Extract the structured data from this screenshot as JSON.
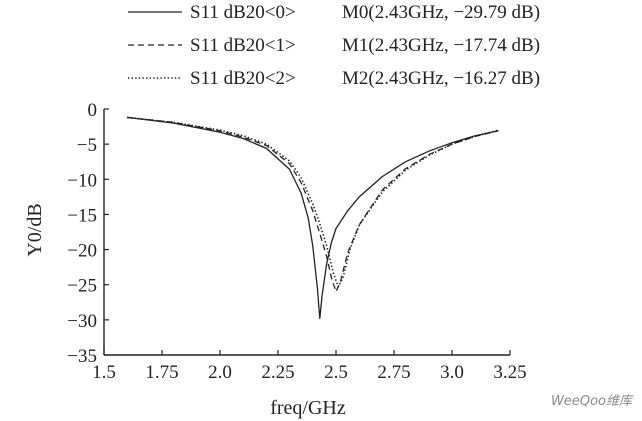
{
  "chart_data": {
    "type": "line",
    "xlabel": "freq/GHz",
    "ylabel": "Y0/dB",
    "xlim": [
      1.5,
      3.25
    ],
    "ylim": [
      -35,
      0
    ],
    "xticks": [
      "1.5",
      "1.75",
      "2.0",
      "2.25",
      "2.5",
      "2.75",
      "3.0",
      "3.25"
    ],
    "yticks": [
      "0",
      "-5",
      "-10",
      "-15",
      "-20",
      "-25",
      "-30",
      "-35"
    ],
    "grid": false,
    "legend_position": "top",
    "series": [
      {
        "name": "S11 dB20<0>",
        "marker_label": "M0(2.43GHz, −29.79 dB)",
        "style": "solid",
        "x": [
          1.6,
          1.8,
          2.0,
          2.1,
          2.2,
          2.3,
          2.35,
          2.38,
          2.4,
          2.42,
          2.43,
          2.44,
          2.46,
          2.48,
          2.5,
          2.55,
          2.6,
          2.7,
          2.8,
          2.9,
          3.0,
          3.1,
          3.2
        ],
        "y": [
          -1.2,
          -2.0,
          -3.3,
          -4.2,
          -5.6,
          -8.6,
          -12.0,
          -15.5,
          -19.5,
          -25.5,
          -29.8,
          -26.5,
          -22.0,
          -19.0,
          -17.0,
          -14.5,
          -12.5,
          -9.6,
          -7.5,
          -6.0,
          -4.8,
          -3.8,
          -3.1
        ]
      },
      {
        "name": "S11 dB20<1>",
        "marker_label": "M1(2.43GHz, −17.74 dB)",
        "style": "dashed",
        "x": [
          1.6,
          1.8,
          2.0,
          2.1,
          2.2,
          2.3,
          2.35,
          2.4,
          2.43,
          2.46,
          2.48,
          2.5,
          2.52,
          2.55,
          2.6,
          2.7,
          2.8,
          2.9,
          3.0,
          3.1,
          3.2
        ],
        "y": [
          -1.2,
          -1.9,
          -3.1,
          -4.0,
          -5.2,
          -7.8,
          -10.5,
          -14.5,
          -17.7,
          -21.0,
          -24.0,
          -26.0,
          -24.5,
          -20.5,
          -16.5,
          -11.5,
          -8.5,
          -6.5,
          -5.0,
          -3.9,
          -3.1
        ]
      },
      {
        "name": "S11 dB20<2>",
        "marker_label": "M2(2.43GHz, −16.27 dB)",
        "style": "dotted",
        "x": [
          1.6,
          1.8,
          2.0,
          2.1,
          2.2,
          2.3,
          2.35,
          2.4,
          2.43,
          2.46,
          2.49,
          2.51,
          2.53,
          2.56,
          2.6,
          2.7,
          2.8,
          2.9,
          3.0,
          3.1,
          3.2
        ],
        "y": [
          -1.2,
          -1.9,
          -3.0,
          -3.8,
          -5.0,
          -7.4,
          -9.8,
          -13.5,
          -16.3,
          -19.5,
          -23.5,
          -25.3,
          -24.0,
          -20.0,
          -16.5,
          -11.8,
          -8.7,
          -6.6,
          -5.0,
          -3.9,
          -3.0
        ]
      }
    ]
  },
  "watermark": "WeeQoo维库"
}
